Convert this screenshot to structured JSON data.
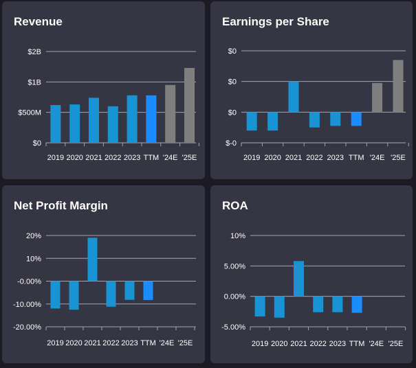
{
  "cards": [
    {
      "title": "Revenue",
      "chart_data": {
        "type": "bar",
        "title": "Revenue",
        "categories": [
          "2019",
          "2020",
          "2021",
          "2022",
          "2023",
          "TTM",
          "'24E",
          "'25E"
        ],
        "values": [
          0.62,
          0.63,
          0.74,
          0.6,
          0.78,
          0.78,
          0.95,
          1.23
        ],
        "value_unit": "$B",
        "bar_kinds": [
          "actual",
          "actual",
          "actual",
          "actual",
          "actual",
          "ttm",
          "estimate",
          "estimate"
        ],
        "ylim": [
          0,
          1.5
        ],
        "yticks": [
          0,
          0.5,
          1,
          1.5
        ],
        "ytick_labels": [
          "$0",
          "$500M",
          "$1B",
          "$2B"
        ],
        "grid": true
      }
    },
    {
      "title": "Earnings per Share",
      "chart_data": {
        "type": "bar",
        "title": "Earnings per Share",
        "categories": [
          "2019",
          "2020",
          "2021",
          "2022",
          "2023",
          "TTM",
          "'24E",
          "'25E"
        ],
        "values": [
          -0.12,
          -0.12,
          0.2,
          -0.1,
          -0.09,
          -0.09,
          0.19,
          0.34
        ],
        "value_unit": "$",
        "bar_kinds": [
          "actual",
          "actual",
          "actual",
          "actual",
          "actual",
          "ttm",
          "estimate",
          "estimate"
        ],
        "ylim": [
          -0.2,
          0.4
        ],
        "yticks": [
          -0.2,
          0,
          0.2,
          0.4
        ],
        "ytick_labels": [
          "$-0",
          "$0",
          "$0",
          "$0"
        ],
        "grid": true
      }
    },
    {
      "title": "Net Profit Margin",
      "chart_data": {
        "type": "bar",
        "title": "Net Profit Margin",
        "categories": [
          "2019",
          "2020",
          "2021",
          "2022",
          "2023",
          "TTM",
          "'24E",
          "'25E"
        ],
        "values": [
          -0.12,
          -0.125,
          0.19,
          -0.112,
          -0.082,
          -0.083,
          null,
          null
        ],
        "value_unit": "%",
        "bar_kinds": [
          "actual",
          "actual",
          "actual",
          "actual",
          "actual",
          "ttm",
          "estimate",
          "estimate"
        ],
        "ylim": [
          -0.2,
          0.2
        ],
        "yticks": [
          -0.2,
          -0.1,
          0,
          0.1,
          0.2
        ],
        "ytick_labels": [
          "-20.00%",
          "-10.00%",
          "-0.00%",
          "10%",
          "20%"
        ],
        "grid": true
      }
    },
    {
      "title": "ROA",
      "chart_data": {
        "type": "bar",
        "title": "ROA",
        "categories": [
          "2019",
          "2020",
          "2021",
          "2022",
          "2023",
          "TTM",
          "'24E",
          "'25E"
        ],
        "values": [
          -0.033,
          -0.035,
          0.058,
          -0.026,
          -0.026,
          -0.027,
          null,
          null
        ],
        "value_unit": "%",
        "bar_kinds": [
          "actual",
          "actual",
          "actual",
          "actual",
          "actual",
          "ttm",
          "estimate",
          "estimate"
        ],
        "ylim": [
          -0.05,
          0.1
        ],
        "yticks": [
          -0.05,
          0,
          0.05,
          0.1
        ],
        "ytick_labels": [
          "-5.00%",
          "0.00%",
          "5.00%",
          "10%"
        ],
        "grid": true
      }
    }
  ],
  "colors": {
    "page_background": "#1c1b24",
    "card_background": "#363544",
    "actual_bar": "#1894d2",
    "ttm_bar": "#1a8cff",
    "estimate_bar": "#7f7f7f",
    "grid": "#a6a6b0",
    "text": "#ffffff"
  }
}
